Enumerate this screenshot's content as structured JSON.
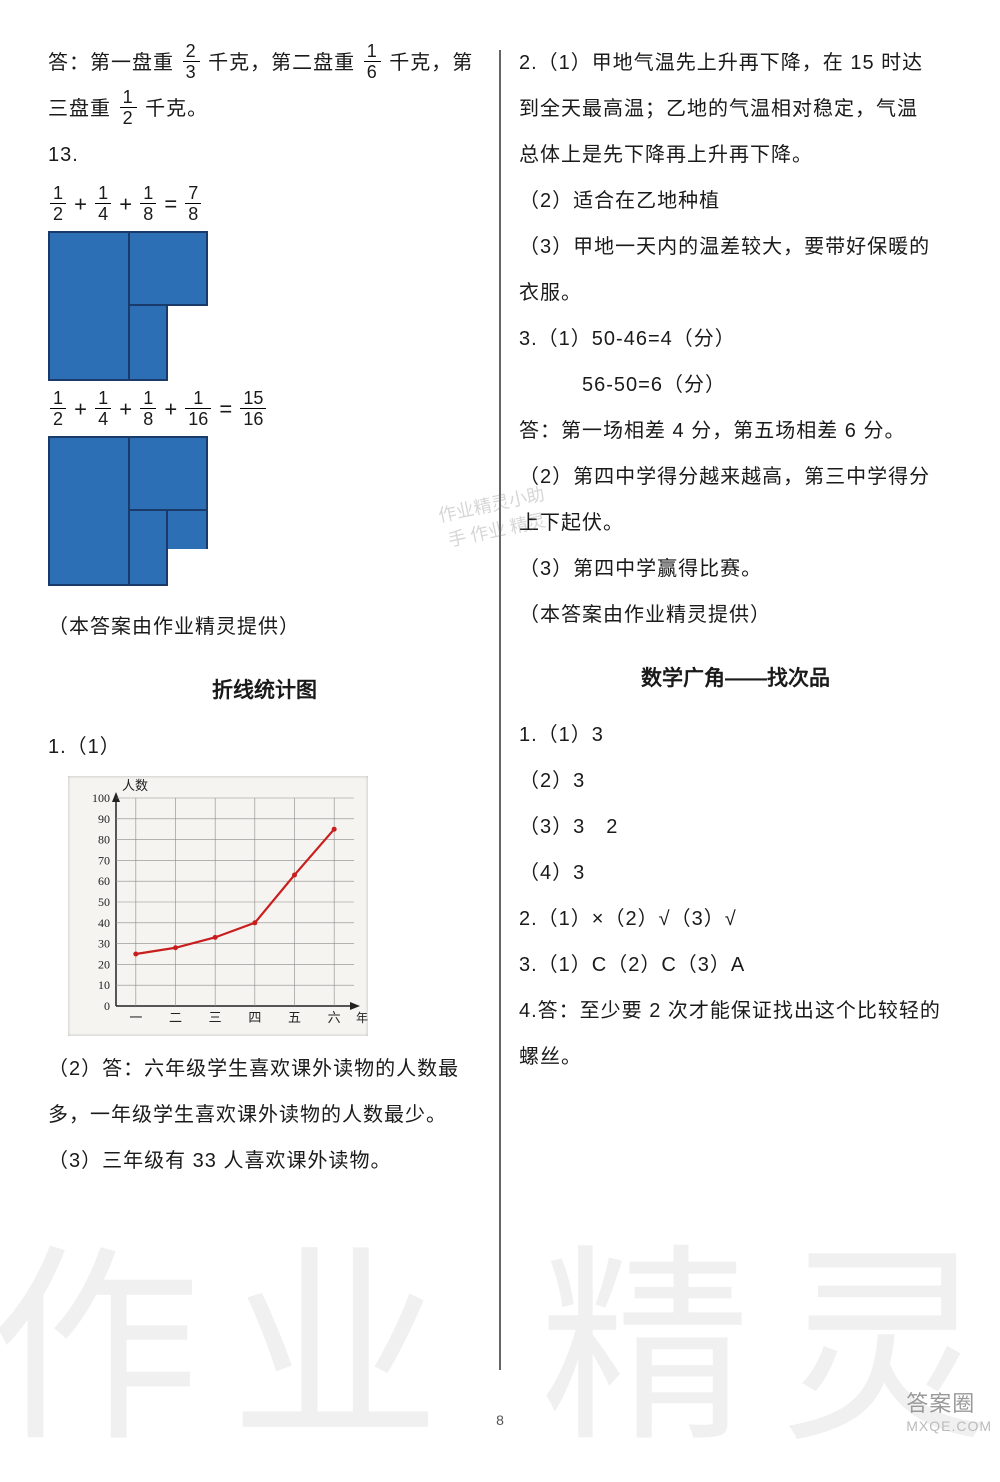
{
  "left": {
    "p1_a": "答：第一盘重",
    "f1": {
      "n": "2",
      "d": "3"
    },
    "p1_b": "千克，第二盘重",
    "f2": {
      "n": "1",
      "d": "6"
    },
    "p1_c": "千克，第",
    "p1_d": "三盘重",
    "f3": {
      "n": "1",
      "d": "2"
    },
    "p1_e": "千克。",
    "q13": "13.",
    "eq1": {
      "terms": [
        {
          "n": "1",
          "d": "2"
        },
        {
          "n": "1",
          "d": "4"
        },
        {
          "n": "1",
          "d": "8"
        }
      ],
      "res": {
        "n": "7",
        "d": "8"
      }
    },
    "eq2": {
      "terms": [
        {
          "n": "1",
          "d": "2"
        },
        {
          "n": "1",
          "d": "4"
        },
        {
          "n": "1",
          "d": "8"
        },
        {
          "n": "1",
          "d": "16"
        }
      ],
      "res": {
        "n": "15",
        "d": "16"
      }
    },
    "credit": "（本答案由作业精灵提供）",
    "sec1_title": "折线统计图",
    "q1_1": "1.（1）",
    "chart": {
      "y_label": "人数",
      "x_label": "年级",
      "y_ticks": [
        0,
        10,
        20,
        30,
        40,
        50,
        60,
        70,
        80,
        90,
        100
      ],
      "x_ticks": [
        "一",
        "二",
        "三",
        "四",
        "五",
        "六"
      ],
      "values": [
        25,
        28,
        33,
        40,
        63,
        85
      ],
      "line_color": "#c81e1e",
      "grid_color": "#8a8a8a",
      "axis_color": "#222"
    },
    "p2": "（2）答：六年级学生喜欢课外读物的人数最",
    "p2b": "多，一年级学生喜欢课外读物的人数最少。",
    "p3": "（3）三年级有 33 人喜欢课外读物。"
  },
  "right": {
    "r1": "2.（1）甲地气温先上升再下降，在 15 时达",
    "r2": "到全天最高温；乙地的气温相对稳定，气温",
    "r3": "总体上是先下降再上升再下降。",
    "r4": "（2）适合在乙地种植",
    "r5": "（3）甲地一天内的温差较大，要带好保暖的",
    "r6": "衣服。",
    "r7": "3.（1）50-46=4（分）",
    "r8": "　　　56-50=6（分）",
    "r9": "答：第一场相差 4 分，第五场相差 6 分。",
    "r10": "（2）第四中学得分越来越高，第三中学得分",
    "r11": "上下起伏。",
    "r12": "（3）第四中学赢得比赛。",
    "r13": "（本答案由作业精灵提供）",
    "sec2_title": "数学广角——找次品",
    "s1": "1.（1）3",
    "s2": "（2）3",
    "s3": "（3）3　2",
    "s4": "（4）3",
    "s5": "2.（1）×（2）√（3）√",
    "s6": "3.（1）C（2）C（3）A",
    "s7": "4.答：至少要 2 次才能保证找出这个比较轻的",
    "s8": "螺丝。"
  },
  "shape_color": "#2d6fb5",
  "shape_border": "#1a3a6a",
  "watermark_left": "作业",
  "watermark_right": "精灵",
  "stamp_text": "作业精灵小助手 作业 精灵",
  "page_number": "8",
  "badge_main": "答案圈",
  "badge_site": "MXQE.COM"
}
